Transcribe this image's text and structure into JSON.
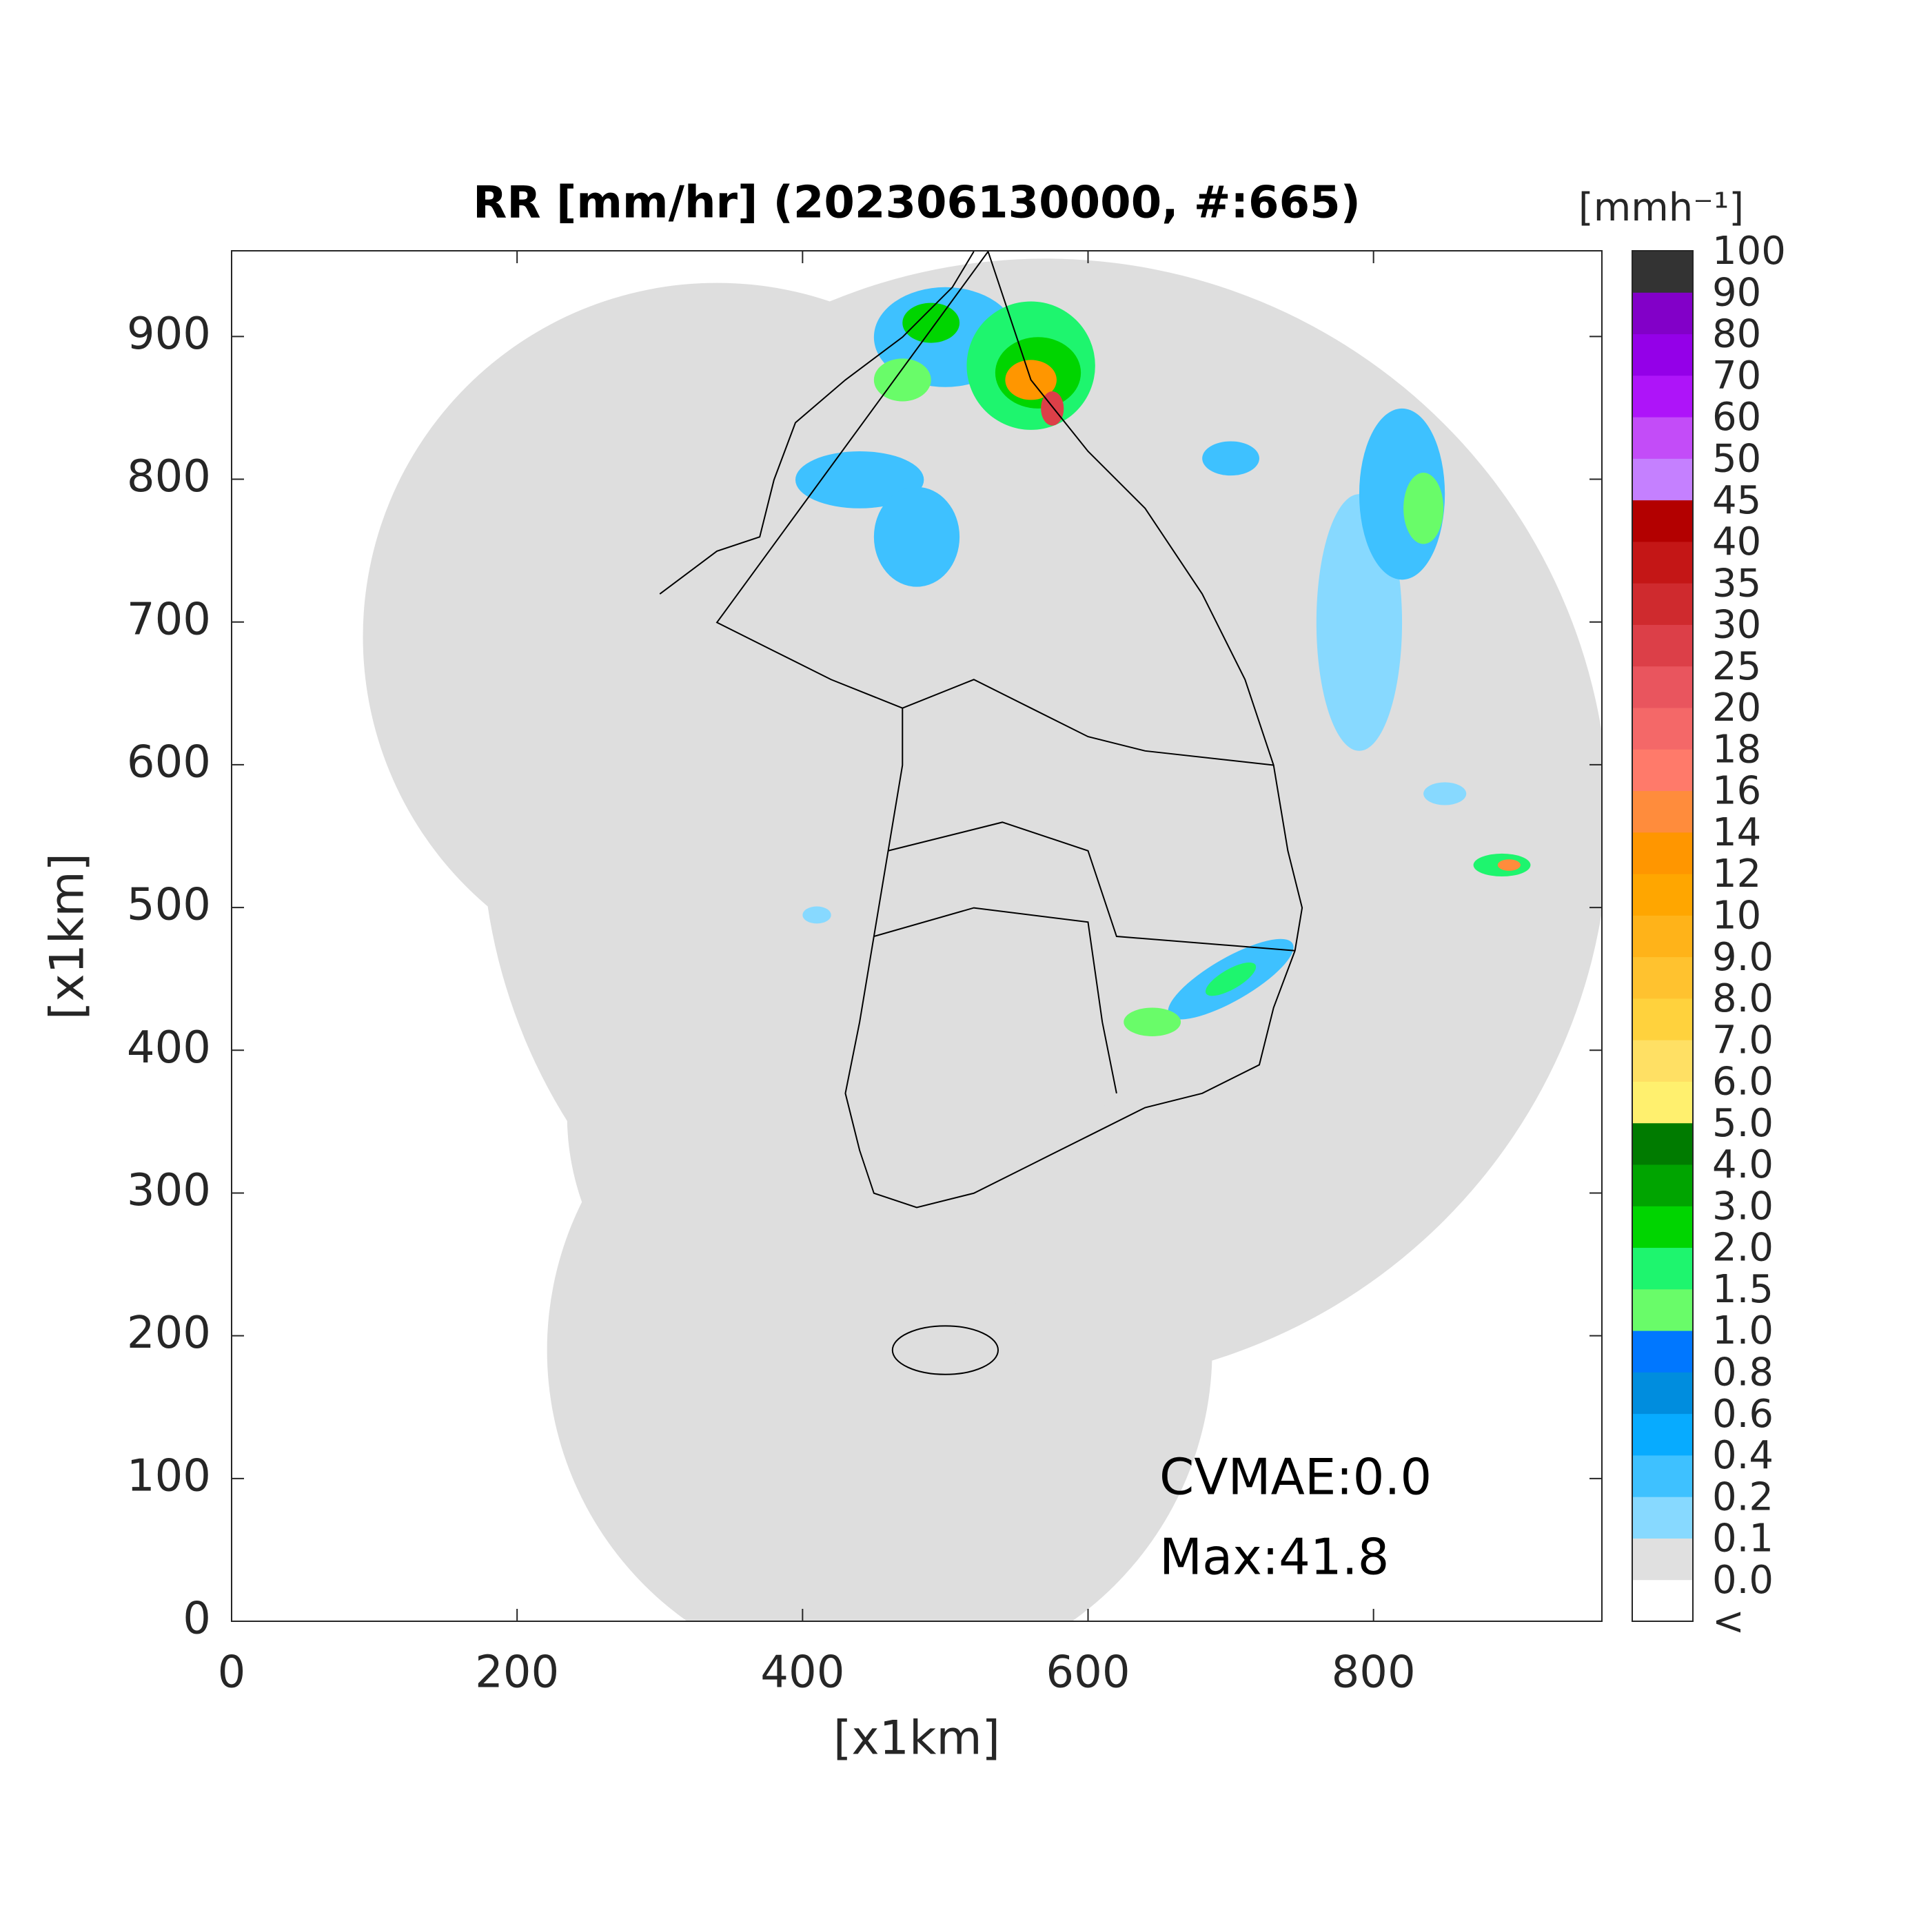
{
  "chart_data": {
    "type": "heatmap",
    "title": "RR [mm/hr] (202306130000, #:665)",
    "x_label": "[x1km]",
    "y_label": "[x1km]",
    "xlim": [
      0,
      960
    ],
    "ylim": [
      0,
      960
    ],
    "xticks": [
      0,
      200,
      400,
      600,
      800
    ],
    "yticks": [
      0,
      100,
      200,
      300,
      400,
      500,
      600,
      700,
      800,
      900
    ],
    "annotations": [
      "CVMAE:0.0",
      "Max:41.8"
    ],
    "colorbar": {
      "label": "[mmh⁻¹]",
      "tick_labels": [
        "<",
        "0.0",
        "0.1",
        "0.2",
        "0.4",
        "0.6",
        "0.8",
        "1.0",
        "1.5",
        "2.0",
        "3.0",
        "4.0",
        "5.0",
        "6.0",
        "7.0",
        "8.0",
        "9.0",
        "10",
        "12",
        "14",
        "16",
        "18",
        "20",
        "25",
        "30",
        "35",
        "40",
        "45",
        "50",
        "60",
        "70",
        "80",
        "90",
        "100"
      ],
      "colors": [
        "#ffffff",
        "#e0e0e0",
        "#87d9ff",
        "#3ec1ff",
        "#07abff",
        "#008dde",
        "#0077ff",
        "#69fc69",
        "#1ef56e",
        "#00d500",
        "#00a400",
        "#007b00",
        "#fff06e",
        "#ffe064",
        "#ffd23d",
        "#ffc22f",
        "#ffb319",
        "#ffa600",
        "#ff9600",
        "#ff8c3c",
        "#ff7a6a",
        "#f46868",
        "#e9555e",
        "#dc3f48",
        "#cf2a2e",
        "#c41616",
        "#b30000",
        "#c580ff",
        "#c34cf8",
        "#ae14f9",
        "#9400e8",
        "#8200c8",
        "#333333"
      ]
    }
  }
}
